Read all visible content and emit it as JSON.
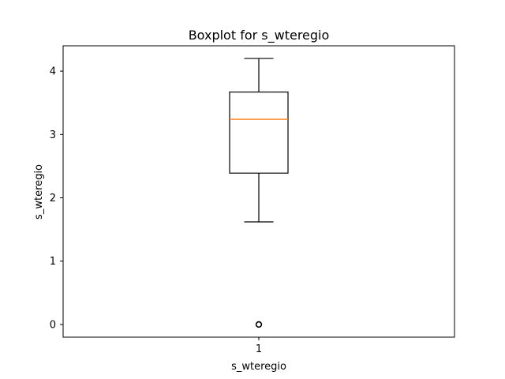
{
  "chart_data": {
    "type": "box",
    "title": "Boxplot for s_wteregio",
    "xlabel": "s_wteregio",
    "ylabel": "s_wteregio",
    "categories": [
      "1"
    ],
    "ylim": [
      -0.2,
      4.4
    ],
    "yticks": [
      0,
      1,
      2,
      3,
      4
    ],
    "series": [
      {
        "whisker_low": 1.62,
        "q1": 2.39,
        "median": 3.24,
        "q3": 3.67,
        "whisker_high": 4.2,
        "outliers": [
          0
        ]
      }
    ],
    "colors": {
      "box": "#000000",
      "median": "#ff7f0e",
      "outlier": "#000000"
    },
    "grid": false
  }
}
